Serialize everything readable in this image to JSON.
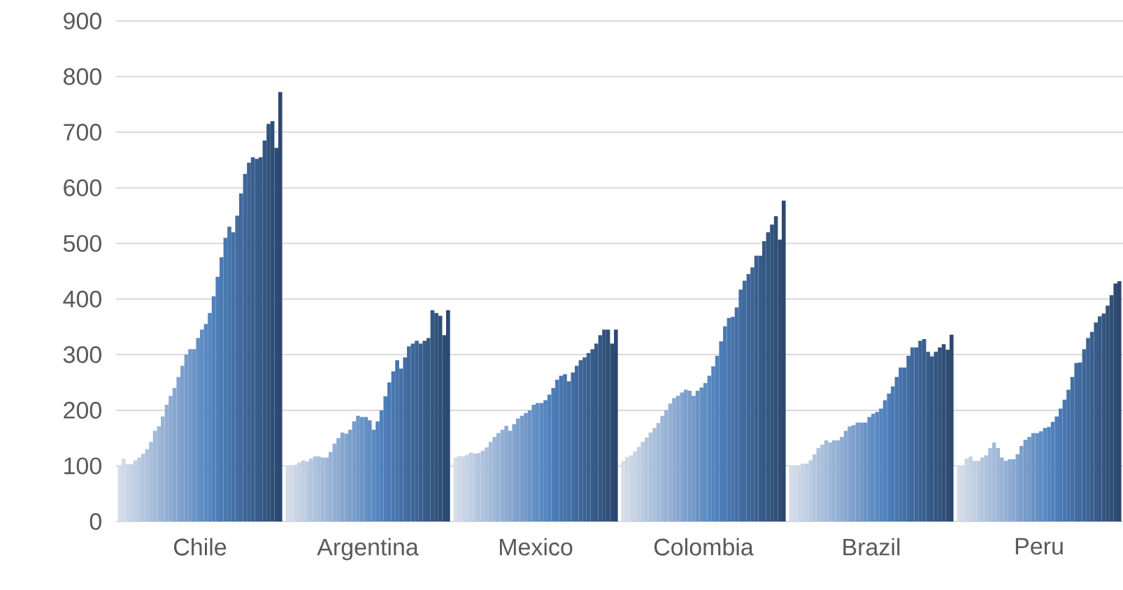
{
  "chart_data": {
    "type": "bar",
    "categories": [
      "Chile",
      "Argentina",
      "Mexico",
      "Colombia",
      "Brazil",
      "Peru"
    ],
    "ylim": [
      0,
      900
    ],
    "yticks": [
      0,
      100,
      200,
      300,
      400,
      500,
      600,
      700,
      800,
      900
    ],
    "grid": "y",
    "series": [
      {
        "color": "#d6dde9",
        "values": [
          100,
          100,
          115,
          109,
          100,
          100
        ]
      },
      {
        "color": "#d0d9e7",
        "values": [
          113,
          100,
          118,
          116,
          100,
          100
        ]
      },
      {
        "color": "#cbd5e5",
        "values": [
          103,
          102,
          117,
          119,
          100,
          113
        ]
      },
      {
        "color": "#c5d2e4",
        "values": [
          103,
          106,
          120,
          126,
          104,
          117
        ]
      },
      {
        "color": "#c0cee2",
        "values": [
          110,
          110,
          124,
          134,
          104,
          109
        ]
      },
      {
        "color": "#bacae0",
        "values": [
          115,
          108,
          122,
          143,
          110,
          109
        ]
      },
      {
        "color": "#b4c6de",
        "values": [
          122,
          113,
          123,
          151,
          121,
          115
        ]
      },
      {
        "color": "#afc2dc",
        "values": [
          130,
          117,
          127,
          160,
          132,
          119
        ]
      },
      {
        "color": "#a9beda",
        "values": [
          143,
          117,
          133,
          168,
          138,
          132
        ]
      },
      {
        "color": "#a3bbd9",
        "values": [
          163,
          115,
          143,
          177,
          146,
          142
        ]
      },
      {
        "color": "#9eb7d7",
        "values": [
          171,
          115,
          152,
          190,
          142,
          132
        ]
      },
      {
        "color": "#98b3d5",
        "values": [
          189,
          125,
          159,
          200,
          146,
          115
        ]
      },
      {
        "color": "#93afd3",
        "values": [
          210,
          140,
          165,
          212,
          146,
          109
        ]
      },
      {
        "color": "#8dabd1",
        "values": [
          226,
          150,
          172,
          222,
          152,
          112
        ]
      },
      {
        "color": "#87a7cf",
        "values": [
          240,
          160,
          163,
          226,
          163,
          112
        ]
      },
      {
        "color": "#82a4ce",
        "values": [
          260,
          158,
          175,
          232,
          171,
          121
        ]
      },
      {
        "color": "#7ca0cc",
        "values": [
          280,
          165,
          185,
          237,
          173,
          136
        ]
      },
      {
        "color": "#769cca",
        "values": [
          300,
          180,
          190,
          235,
          178,
          147
        ]
      },
      {
        "color": "#7198c8",
        "values": [
          310,
          190,
          195,
          226,
          178,
          152
        ]
      },
      {
        "color": "#6b94c6",
        "values": [
          310,
          188,
          200,
          235,
          178,
          159
        ]
      },
      {
        "color": "#6590c4",
        "values": [
          330,
          188,
          210,
          241,
          188,
          159
        ]
      },
      {
        "color": "#608dc3",
        "values": [
          345,
          182,
          213,
          249,
          194,
          162
        ]
      },
      {
        "color": "#5a89c1",
        "values": [
          355,
          165,
          213,
          262,
          197,
          168
        ]
      },
      {
        "color": "#5585bf",
        "values": [
          375,
          180,
          218,
          279,
          203,
          170
        ]
      },
      {
        "color": "#4f81bd",
        "values": [
          405,
          200,
          228,
          298,
          218,
          179
        ]
      },
      {
        "color": "#4d7eb8",
        "values": [
          440,
          225,
          240,
          324,
          230,
          189
        ]
      },
      {
        "color": "#4b7ab4",
        "values": [
          475,
          250,
          255,
          351,
          243,
          203
        ]
      },
      {
        "color": "#4977af",
        "values": [
          510,
          270,
          262,
          366,
          260,
          219
        ]
      },
      {
        "color": "#4774aa",
        "values": [
          530,
          290,
          265,
          368,
          277,
          237
        ]
      },
      {
        "color": "#4570a6",
        "values": [
          520,
          275,
          252,
          385,
          277,
          260
        ]
      },
      {
        "color": "#436da1",
        "values": [
          550,
          295,
          268,
          417,
          298,
          285
        ]
      },
      {
        "color": "#416a9d",
        "values": [
          590,
          315,
          280,
          433,
          313,
          286
        ]
      },
      {
        "color": "#3f6698",
        "values": [
          625,
          320,
          290,
          445,
          313,
          310
        ]
      },
      {
        "color": "#3c6393",
        "values": [
          645,
          325,
          295,
          457,
          325,
          330
        ]
      },
      {
        "color": "#3a608f",
        "values": [
          655,
          320,
          303,
          478,
          328,
          341
        ]
      },
      {
        "color": "#385c8a",
        "values": [
          652,
          325,
          310,
          478,
          305,
          358
        ]
      },
      {
        "color": "#365985",
        "values": [
          655,
          330,
          320,
          504,
          297,
          369
        ]
      },
      {
        "color": "#345681",
        "values": [
          685,
          380,
          335,
          520,
          305,
          374
        ]
      },
      {
        "color": "#32527c",
        "values": [
          715,
          375,
          345,
          534,
          313,
          388
        ]
      },
      {
        "color": "#304f77",
        "values": [
          720,
          370,
          345,
          549,
          319,
          407
        ]
      },
      {
        "color": "#2e4b73",
        "values": [
          672,
          335,
          320,
          507,
          309,
          428
        ]
      },
      {
        "color": "#2c486e",
        "values": [
          772,
          380,
          345,
          577,
          336,
          432
        ]
      }
    ]
  }
}
